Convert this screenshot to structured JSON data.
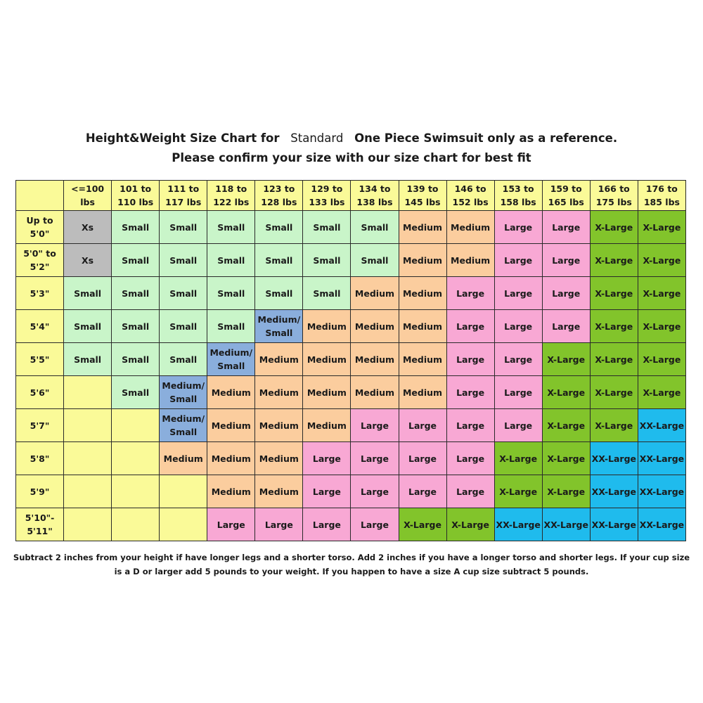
{
  "title": {
    "part1": "Height&Weight Size Chart for",
    "part2": "Standard",
    "part3": "One Piece Swimsuit only as a reference.",
    "line2": "Please confirm your size with our size chart for best fit"
  },
  "colors": {
    "yellow": "#fafa98",
    "gray": "#bcbcbc",
    "lightgreen": "#c9f5c9",
    "orange": "#fbcd9e",
    "pink": "#f8a8d4",
    "green": "#82c42b",
    "cyan": "#1fbbed",
    "blue": "#8aaedc"
  },
  "table": {
    "corner": "",
    "columns": [
      "<=100 lbs",
      "101 to\n110 lbs",
      "111 to\n117 lbs",
      "118 to\n122 lbs",
      "123 to\n128 lbs",
      "129 to\n133 lbs",
      "134 to\n138 lbs",
      "139 to\n145 lbs",
      "146 to\n152 lbs",
      "153 to\n158 lbs",
      "159 to\n165 lbs",
      "166 to\n175 lbs",
      "176 to\n185 lbs"
    ],
    "rows": [
      {
        "height": "Up to\n5'0\"",
        "cells": [
          "Xs",
          "Small",
          "Small",
          "Small",
          "Small",
          "Small",
          "Small",
          "Medium",
          "Medium",
          "Large",
          "Large",
          "X-Large",
          "X-Large"
        ]
      },
      {
        "height": "5'0\" to\n5'2\"",
        "cells": [
          "Xs",
          "Small",
          "Small",
          "Small",
          "Small",
          "Small",
          "Small",
          "Medium",
          "Medium",
          "Large",
          "Large",
          "X-Large",
          "X-Large"
        ]
      },
      {
        "height": "5'3\"",
        "cells": [
          "Small",
          "Small",
          "Small",
          "Small",
          "Small",
          "Small",
          "Medium",
          "Medium",
          "Large",
          "Large",
          "Large",
          "X-Large",
          "X-Large"
        ]
      },
      {
        "height": "5'4\"",
        "cells": [
          "Small",
          "Small",
          "Small",
          "Small",
          "Medium/\nSmall",
          "Medium",
          "Medium",
          "Medium",
          "Large",
          "Large",
          "Large",
          "X-Large",
          "X-Large"
        ]
      },
      {
        "height": "5'5\"",
        "cells": [
          "Small",
          "Small",
          "Small",
          "Medium/\nSmall",
          "Medium",
          "Medium",
          "Medium",
          "Medium",
          "Large",
          "Large",
          "X-Large",
          "X-Large",
          "X-Large"
        ]
      },
      {
        "height": "5'6\"",
        "cells": [
          "",
          "Small",
          "Medium/\nSmall",
          "Medium",
          "Medium",
          "Medium",
          "Medium",
          "Medium",
          "Large",
          "Large",
          "X-Large",
          "X-Large",
          "X-Large"
        ]
      },
      {
        "height": "5'7\"",
        "cells": [
          "",
          "",
          "Medium/\nSmall",
          "Medium",
          "Medium",
          "Medium",
          "Large",
          "Large",
          "Large",
          "Large",
          "X-Large",
          "X-Large",
          "XX-Large"
        ]
      },
      {
        "height": "5'8\"",
        "cells": [
          "",
          "",
          "Medium",
          "Medium",
          "Medium",
          "Large",
          "Large",
          "Large",
          "Large",
          "X-Large",
          "X-Large",
          "XX-Large",
          "XX-Large"
        ]
      },
      {
        "height": "5'9\"",
        "cells": [
          "",
          "",
          "",
          "Medium",
          "Medium",
          "Large",
          "Large",
          "Large",
          "Large",
          "X-Large",
          "X-Large",
          "XX-Large",
          "XX-Large"
        ]
      },
      {
        "height": "5'10\"-\n5'11\"",
        "cells": [
          "",
          "",
          "",
          "Large",
          "Large",
          "Large",
          "Large",
          "X-Large",
          "X-Large",
          "XX-Large",
          "XX-Large",
          "XX-Large",
          "XX-Large"
        ]
      }
    ]
  },
  "note": "Subtract 2 inches from your height if have longer legs and a shorter torso. Add 2 inches if you have a longer torso and shorter legs. If your cup size is a D or larger add 5 pounds to your weight. If you happen to have a size A cup size subtract 5 pounds."
}
